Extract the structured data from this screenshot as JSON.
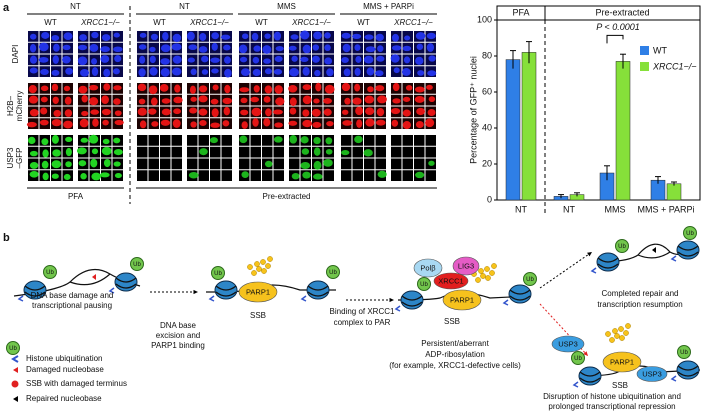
{
  "panel_labels": [
    "a",
    "b"
  ],
  "microscopy": {
    "row_labels": [
      [
        "DAPI"
      ],
      [
        "H2B–",
        "mCherry"
      ],
      [
        "USP3",
        "–GFP"
      ]
    ],
    "conditions": [
      "NT",
      "NT",
      "MMS",
      "MMS + PARPi"
    ],
    "genotypes": [
      "WT",
      "XRCC1−/−"
    ],
    "fixations": [
      "PFA",
      "Pre-extracted"
    ]
  },
  "chart_data": {
    "type": "bar",
    "y_label": "Percentage of GFP⁺ nuclei",
    "groups": [
      "PFA",
      "Pre-extracted"
    ],
    "categories": [
      "NT",
      "NT",
      "MMS",
      "MMS + PARPi"
    ],
    "series": [
      {
        "name": "WT",
        "color": "#2f7fe6",
        "values": [
          78,
          2,
          15,
          11
        ],
        "errors": [
          5,
          1,
          4,
          2
        ]
      },
      {
        "name": "XRCC1−/−",
        "color": "#86e03a",
        "values": [
          82,
          3,
          77,
          9
        ],
        "errors": [
          6,
          1,
          4,
          1
        ]
      }
    ],
    "ylim": [
      0,
      100
    ],
    "yticks": [
      0,
      20,
      40,
      60,
      80,
      100
    ],
    "annotation": "P < 0.0001",
    "legend": "right"
  },
  "diagram": {
    "step1": [
      "DNA base damage and",
      "transcriptional pausing"
    ],
    "step2": [
      "DNA base",
      "excision and",
      "PARP1 binding"
    ],
    "step3": [
      "Binding of XRCC1",
      "complex to PAR"
    ],
    "step4": [
      "Persistent/aberrant",
      "ADP-ribosylation",
      "(for example, XRCC1-defective cells)"
    ],
    "outcome_repair": [
      "Completed repair and",
      "transcription resumption"
    ],
    "outcome_disruption": [
      "Disruption of histone ubiquitination and",
      "prolonged transcriptional repression"
    ],
    "parp1": "PARP1",
    "ssb": "SSB",
    "ub": "Ub",
    "polb": "Polβ",
    "lig3": "LIG3",
    "xrcc1": "XRCC1",
    "usp3": "USP3",
    "legend": [
      "Histone ubiquitination",
      "Damaged nucleobase",
      "SSB with damaged terminus",
      "Repaired nucleobase"
    ]
  }
}
